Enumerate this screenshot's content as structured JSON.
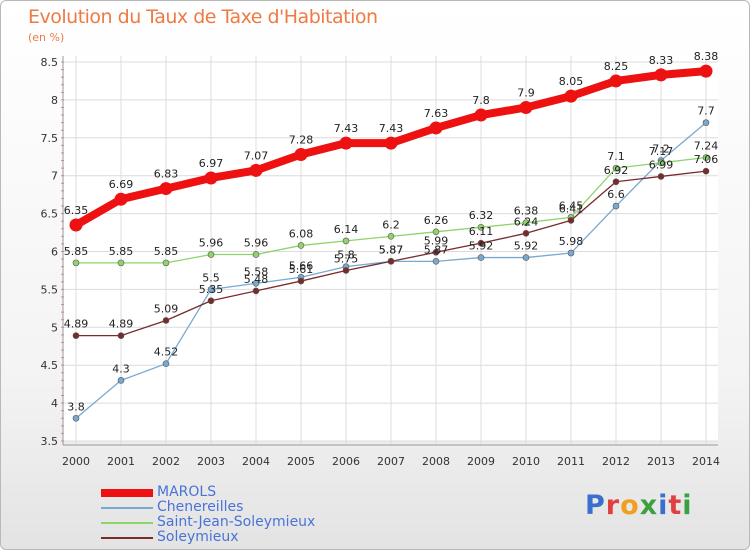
{
  "header": {
    "title": "Evolution du Taux de Taxe d'Habitation",
    "unit": "(en %)"
  },
  "chart_data": {
    "type": "line",
    "x": [
      "2000",
      "2001",
      "2002",
      "2003",
      "2004",
      "2005",
      "2006",
      "2007",
      "2008",
      "2009",
      "2010",
      "2011",
      "2012",
      "2013",
      "2014"
    ],
    "ylim": [
      3.5,
      8.5
    ],
    "yticks": [
      "3.5",
      "4",
      "4.5",
      "5",
      "5.5",
      "6",
      "6.5",
      "7",
      "7.5",
      "8",
      "8.5"
    ],
    "grid": true,
    "series": [
      {
        "name": "MAROLS",
        "color": "#ee1111",
        "values": [
          6.35,
          6.69,
          6.83,
          6.97,
          7.07,
          7.28,
          7.43,
          7.43,
          7.63,
          7.8,
          7.9,
          8.05,
          8.25,
          8.33,
          8.38
        ],
        "labels": [
          "6.35",
          "6.69",
          "6.83",
          "6.97",
          "7.07",
          "7.28",
          "7.43",
          "7.43",
          "7.63",
          "7.8",
          "7.9",
          "8.05",
          "8.25",
          "8.33",
          "8.38"
        ]
      },
      {
        "name": "Chenereilles",
        "color": "#79a8d0",
        "values": [
          3.8,
          4.3,
          4.52,
          5.5,
          5.58,
          5.66,
          5.8,
          5.87,
          5.87,
          5.92,
          5.92,
          5.98,
          6.6,
          7.2,
          7.7
        ],
        "labels": [
          "3.8",
          "4.3",
          "4.52",
          "5.5",
          "5.58",
          "5.66",
          "5.8",
          "5.87",
          "5.87",
          "5.92",
          "5.92",
          "5.98",
          "6.6",
          "7.2",
          "7.7"
        ]
      },
      {
        "name": "Saint-Jean-Soleymieux",
        "color": "#8ed46a",
        "values": [
          5.85,
          5.85,
          5.85,
          5.96,
          5.96,
          6.08,
          6.14,
          6.2,
          6.26,
          6.32,
          6.38,
          6.45,
          7.1,
          7.17,
          7.24
        ],
        "labels": [
          "5.85",
          "5.85",
          "5.85",
          "5.96",
          "5.96",
          "6.08",
          "6.14",
          "6.2",
          "6.26",
          "6.32",
          "6.38",
          "6.45",
          "7.1",
          "7.17",
          "7.24"
        ]
      },
      {
        "name": "Soleymieux",
        "color": "#7a2a2a",
        "values": [
          4.89,
          4.89,
          5.09,
          5.35,
          5.48,
          5.61,
          5.75,
          5.87,
          5.99,
          6.11,
          6.24,
          6.41,
          6.92,
          6.99,
          7.06
        ],
        "labels": [
          "4.89",
          "4.89",
          "5.09",
          "5.35",
          "5.48",
          "5.61",
          "5.75",
          "5.87",
          "5.99",
          "6.11",
          "6.24",
          "6.41",
          "6.92",
          "6.99",
          "7.06"
        ]
      }
    ]
  },
  "legend": {
    "items": [
      {
        "label": "MAROLS",
        "color": "#ee1111",
        "thick": true
      },
      {
        "label": "Chenereilles",
        "color": "#79a8d0",
        "thick": false
      },
      {
        "label": "Saint-Jean-Soleymieux",
        "color": "#8ed46a",
        "thick": false
      },
      {
        "label": "Soleymieux",
        "color": "#7a2a2a",
        "thick": false
      }
    ]
  },
  "logo": {
    "text": "Proxiti"
  }
}
